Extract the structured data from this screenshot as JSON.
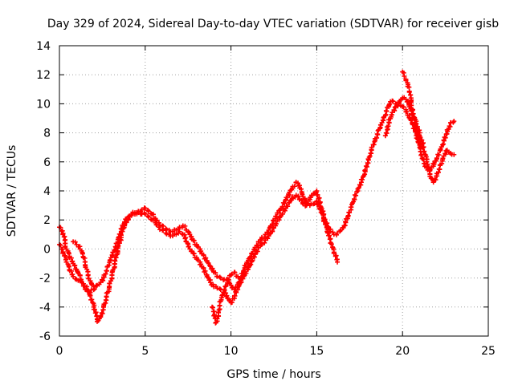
{
  "chart_data": {
    "type": "scatter",
    "title": "Day 329 of 2024, Sidereal Day-to-day VTEC variation (SDTVAR) for receiver gisb",
    "xlabel": "GPS time / hours",
    "ylabel": "SDTVAR / TECUs",
    "xlim": [
      0,
      25
    ],
    "ylim": [
      -6,
      14
    ],
    "xticks": [
      0,
      5,
      10,
      15,
      20,
      25
    ],
    "yticks": [
      -6,
      -4,
      -2,
      0,
      2,
      4,
      6,
      8,
      10,
      12,
      14
    ],
    "grid": true,
    "marker": "+",
    "color": "#ff0000",
    "series": [
      {
        "points": [
          [
            0.0,
            1.5
          ],
          [
            0.2,
            1.0
          ],
          [
            0.4,
            0.0
          ],
          [
            0.6,
            -0.6
          ],
          [
            0.8,
            -1.0
          ],
          [
            1.0,
            -1.4
          ],
          [
            1.2,
            -1.8
          ],
          [
            1.4,
            -2.4
          ],
          [
            1.6,
            -2.8
          ],
          [
            1.8,
            -3.0
          ],
          [
            2.0,
            -2.8
          ],
          [
            2.2,
            -2.5
          ],
          [
            2.4,
            -2.3
          ],
          [
            2.6,
            -1.8
          ],
          [
            2.8,
            -1.2
          ],
          [
            3.0,
            -0.6
          ],
          [
            3.2,
            -0.1
          ],
          [
            3.4,
            0.4
          ],
          [
            3.6,
            1.2
          ],
          [
            3.8,
            1.8
          ],
          [
            4.0,
            2.2
          ],
          [
            4.2,
            2.4
          ],
          [
            4.4,
            2.5
          ],
          [
            4.6,
            2.6
          ],
          [
            4.8,
            2.7
          ],
          [
            5.0,
            2.8
          ],
          [
            5.2,
            2.6
          ],
          [
            5.4,
            2.4
          ],
          [
            5.6,
            2.1
          ],
          [
            5.8,
            1.8
          ],
          [
            6.0,
            1.6
          ],
          [
            6.2,
            1.4
          ],
          [
            6.4,
            1.3
          ],
          [
            6.6,
            1.2
          ],
          [
            6.8,
            1.3
          ],
          [
            7.0,
            1.5
          ],
          [
            7.2,
            1.6
          ],
          [
            7.4,
            1.3
          ],
          [
            7.6,
            1.0
          ],
          [
            7.8,
            0.6
          ],
          [
            8.0,
            0.3
          ],
          [
            8.2,
            0.0
          ],
          [
            8.4,
            -0.4
          ],
          [
            8.6,
            -0.8
          ],
          [
            8.8,
            -1.2
          ],
          [
            9.0,
            -1.6
          ],
          [
            9.2,
            -1.9
          ],
          [
            9.4,
            -2.0
          ],
          [
            9.6,
            -2.1
          ],
          [
            9.8,
            -2.2
          ],
          [
            10.0,
            -2.5
          ],
          [
            10.2,
            -2.8
          ],
          [
            10.4,
            -2.6
          ],
          [
            10.6,
            -2.0
          ],
          [
            10.8,
            -1.3
          ],
          [
            11.0,
            -0.8
          ],
          [
            11.2,
            -0.3
          ],
          [
            11.4,
            0.1
          ],
          [
            11.6,
            0.5
          ],
          [
            11.8,
            0.8
          ],
          [
            12.0,
            1.0
          ],
          [
            12.2,
            1.3
          ],
          [
            12.4,
            1.7
          ],
          [
            12.6,
            2.1
          ],
          [
            12.8,
            2.5
          ],
          [
            13.0,
            2.9
          ],
          [
            13.2,
            3.4
          ],
          [
            13.4,
            3.9
          ],
          [
            13.6,
            4.3
          ],
          [
            13.8,
            4.6
          ],
          [
            14.0,
            4.2
          ],
          [
            14.2,
            3.6
          ],
          [
            14.4,
            3.2
          ],
          [
            14.6,
            3.0
          ],
          [
            14.8,
            3.1
          ],
          [
            15.0,
            3.3
          ],
          [
            15.2,
            2.8
          ],
          [
            15.4,
            2.2
          ],
          [
            15.6,
            1.6
          ],
          [
            15.8,
            1.2
          ],
          [
            16.0,
            1.0
          ],
          [
            16.2,
            1.1
          ],
          [
            16.4,
            1.3
          ],
          [
            16.6,
            1.6
          ],
          [
            16.8,
            2.1
          ],
          [
            17.0,
            2.7
          ],
          [
            17.2,
            3.4
          ],
          [
            17.4,
            4.0
          ],
          [
            17.6,
            4.6
          ],
          [
            17.8,
            5.4
          ],
          [
            18.0,
            6.2
          ],
          [
            18.2,
            7.0
          ],
          [
            18.4,
            7.6
          ],
          [
            18.6,
            8.2
          ],
          [
            18.8,
            8.7
          ],
          [
            19.0,
            9.2
          ],
          [
            19.2,
            9.8
          ],
          [
            19.4,
            10.2
          ],
          [
            19.6,
            10.0
          ],
          [
            19.8,
            10.1
          ],
          [
            20.0,
            10.4
          ],
          [
            20.2,
            10.3
          ],
          [
            20.4,
            9.8
          ],
          [
            20.6,
            9.0
          ],
          [
            20.8,
            8.2
          ],
          [
            21.0,
            7.2
          ],
          [
            21.2,
            6.2
          ],
          [
            21.4,
            5.6
          ],
          [
            21.6,
            5.4
          ],
          [
            21.8,
            5.7
          ],
          [
            22.0,
            6.2
          ],
          [
            22.2,
            6.8
          ],
          [
            22.4,
            7.5
          ],
          [
            22.6,
            8.2
          ],
          [
            22.8,
            8.7
          ],
          [
            23.0,
            8.8
          ]
        ]
      },
      {
        "points": [
          [
            0.0,
            0.3
          ],
          [
            0.2,
            -0.3
          ],
          [
            0.4,
            -0.9
          ],
          [
            0.6,
            -1.5
          ],
          [
            0.8,
            -1.9
          ],
          [
            1.0,
            -2.1
          ],
          [
            1.2,
            -2.2
          ],
          [
            1.4,
            -2.4
          ],
          [
            1.6,
            -2.6
          ],
          [
            1.8,
            -3.2
          ],
          [
            2.0,
            -4.0
          ],
          [
            2.2,
            -5.0
          ],
          [
            2.4,
            -4.6
          ],
          [
            2.6,
            -3.8
          ],
          [
            2.8,
            -3.0
          ],
          [
            3.0,
            -2.2
          ],
          [
            3.2,
            -1.3
          ],
          [
            3.4,
            -0.2
          ],
          [
            3.6,
            0.8
          ],
          [
            3.8,
            1.6
          ],
          [
            4.0,
            2.0
          ],
          [
            4.2,
            2.3
          ],
          [
            4.4,
            2.4
          ],
          [
            4.6,
            2.5
          ],
          [
            4.8,
            2.4
          ],
          [
            5.0,
            2.4
          ],
          [
            5.2,
            2.2
          ],
          [
            5.4,
            2.0
          ],
          [
            5.6,
            1.8
          ],
          [
            5.8,
            1.5
          ],
          [
            6.0,
            1.3
          ],
          [
            6.2,
            1.1
          ],
          [
            6.4,
            1.0
          ],
          [
            6.6,
            0.9
          ],
          [
            6.8,
            1.0
          ],
          [
            7.0,
            1.2
          ],
          [
            7.2,
            1.0
          ],
          [
            7.4,
            0.5
          ],
          [
            7.6,
            0.0
          ],
          [
            7.8,
            -0.3
          ],
          [
            8.0,
            -0.6
          ],
          [
            8.2,
            -0.9
          ],
          [
            8.4,
            -1.3
          ],
          [
            8.6,
            -1.8
          ],
          [
            8.8,
            -2.3
          ],
          [
            9.0,
            -2.6
          ],
          [
            9.2,
            -2.7
          ],
          [
            9.4,
            -2.8
          ],
          [
            9.6,
            -3.0
          ],
          [
            9.8,
            -3.4
          ],
          [
            10.0,
            -3.7
          ],
          [
            10.2,
            -3.4
          ],
          [
            10.4,
            -2.8
          ],
          [
            10.6,
            -2.3
          ],
          [
            10.8,
            -1.8
          ],
          [
            11.0,
            -1.4
          ],
          [
            11.2,
            -0.8
          ],
          [
            11.4,
            -0.3
          ],
          [
            11.6,
            0.1
          ],
          [
            11.8,
            0.4
          ],
          [
            12.0,
            0.6
          ],
          [
            12.2,
            0.9
          ],
          [
            12.4,
            1.2
          ],
          [
            12.6,
            1.6
          ],
          [
            12.8,
            2.0
          ],
          [
            13.0,
            2.4
          ],
          [
            13.2,
            2.8
          ],
          [
            13.4,
            3.2
          ],
          [
            13.6,
            3.6
          ],
          [
            13.8,
            3.7
          ],
          [
            14.0,
            3.4
          ],
          [
            14.2,
            3.1
          ],
          [
            14.4,
            3.0
          ],
          [
            14.6,
            3.4
          ],
          [
            14.8,
            3.8
          ],
          [
            15.0,
            4.0
          ],
          [
            15.2,
            3.2
          ],
          [
            15.4,
            2.1
          ],
          [
            15.6,
            1.2
          ],
          [
            15.8,
            0.4
          ],
          [
            16.0,
            -0.3
          ],
          [
            16.2,
            -0.9
          ]
        ]
      },
      {
        "points": [
          [
            0.8,
            0.5
          ],
          [
            1.0,
            0.3
          ],
          [
            1.2,
            0.0
          ],
          [
            1.4,
            -0.6
          ],
          [
            1.6,
            -1.4
          ],
          [
            1.8,
            -2.2
          ],
          [
            2.0,
            -2.6
          ]
        ]
      },
      {
        "points": [
          [
            8.9,
            -4.0
          ],
          [
            9.0,
            -4.6
          ],
          [
            9.1,
            -5.1
          ],
          [
            9.2,
            -4.8
          ],
          [
            9.3,
            -4.2
          ],
          [
            9.4,
            -3.6
          ],
          [
            9.6,
            -3.0
          ],
          [
            9.8,
            -2.4
          ],
          [
            10.0,
            -1.8
          ],
          [
            10.2,
            -1.6
          ],
          [
            10.4,
            -1.9
          ]
        ]
      },
      {
        "points": [
          [
            20.0,
            12.2
          ],
          [
            20.1,
            11.9
          ],
          [
            20.2,
            11.6
          ],
          [
            20.3,
            11.2
          ],
          [
            20.4,
            10.8
          ],
          [
            20.5,
            10.4
          ],
          [
            20.6,
            9.6
          ],
          [
            20.8,
            8.8
          ],
          [
            21.0,
            8.0
          ],
          [
            21.2,
            7.0
          ],
          [
            21.4,
            6.0
          ],
          [
            21.6,
            5.0
          ],
          [
            21.8,
            4.6
          ],
          [
            22.0,
            5.2
          ],
          [
            22.2,
            5.8
          ],
          [
            22.4,
            6.4
          ],
          [
            22.6,
            6.8
          ],
          [
            22.8,
            6.6
          ],
          [
            23.0,
            6.5
          ]
        ]
      },
      {
        "points": [
          [
            19.0,
            7.8
          ],
          [
            19.1,
            8.4
          ],
          [
            19.2,
            8.9
          ],
          [
            19.4,
            9.4
          ],
          [
            19.6,
            9.8
          ],
          [
            19.8,
            10.0
          ],
          [
            20.0,
            9.8
          ],
          [
            20.2,
            9.6
          ],
          [
            20.4,
            9.2
          ],
          [
            20.6,
            8.6
          ],
          [
            20.8,
            7.8
          ],
          [
            21.0,
            7.0
          ]
        ]
      }
    ]
  }
}
